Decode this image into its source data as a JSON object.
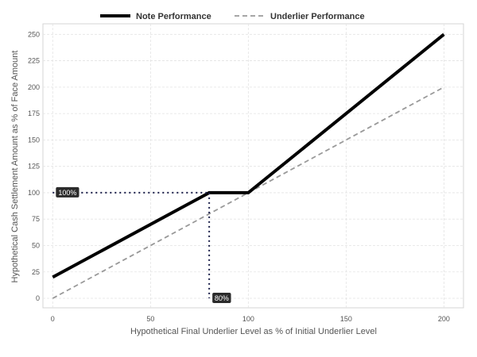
{
  "chart_data": {
    "type": "line",
    "title": "",
    "xlabel": "Hypothetical Final Underlier Level as % of Initial Underlier Level",
    "ylabel": "Hypothetical Cash Settlement Amount as % of Face Amount",
    "xlim": [
      -5,
      210
    ],
    "ylim": [
      -9,
      260
    ],
    "xticks": [
      0,
      50,
      100,
      150,
      200
    ],
    "yticks": [
      0,
      25,
      50,
      75,
      100,
      125,
      150,
      175,
      200,
      225,
      250
    ],
    "grid": true,
    "legend_position": "top",
    "series": [
      {
        "name": "Note Performance",
        "style": "solid",
        "color": "#000000",
        "x": [
          0,
          80,
          100,
          200
        ],
        "y": [
          20,
          100,
          100,
          250
        ]
      },
      {
        "name": "Underlier Performance",
        "style": "dashed",
        "color": "#999999",
        "x": [
          0,
          200
        ],
        "y": [
          0,
          200
        ]
      }
    ],
    "annotations": [
      {
        "label": "100%",
        "x_from": 0,
        "x_to": 80,
        "y": 100,
        "style": "dotted",
        "color": "#1b1f4a"
      },
      {
        "label": "80%",
        "x": 80,
        "y_from": 100,
        "y_to": 0,
        "style": "dotted",
        "color": "#1b1f4a"
      }
    ]
  }
}
